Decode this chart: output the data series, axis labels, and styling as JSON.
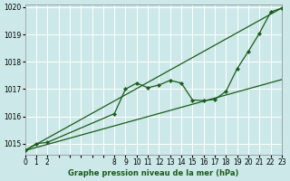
{
  "title": "Graphe pression niveau de la mer (hPa)",
  "bg_color": "#cce8e8",
  "grid_color": "#ffffff",
  "line_color": "#1a5c1a",
  "xlim": [
    0,
    23
  ],
  "ylim": [
    1014.6,
    1020.1
  ],
  "xticks": [
    0,
    1,
    2,
    3,
    4,
    5,
    6,
    7,
    8,
    9,
    10,
    11,
    12,
    13,
    14,
    15,
    16,
    17,
    18,
    19,
    20,
    21,
    22,
    23
  ],
  "xtick_labels": [
    "0",
    "1",
    "2",
    "",
    "",
    "",
    "",
    "",
    "8",
    "9",
    "10",
    "11",
    "12",
    "13",
    "14",
    "15",
    "16",
    "17",
    "18",
    "19",
    "20",
    "21",
    "22",
    "23"
  ],
  "yticks": [
    1015,
    1016,
    1017,
    1018,
    1019,
    1020
  ],
  "line1_x": [
    0,
    1,
    2,
    8,
    9,
    10,
    11,
    12,
    13,
    14,
    15,
    16,
    17,
    18,
    19,
    20,
    21,
    22,
    23
  ],
  "line1_y": [
    1014.75,
    1015.0,
    1015.05,
    1016.1,
    1017.0,
    1017.22,
    1017.05,
    1017.15,
    1017.32,
    1017.22,
    1016.6,
    1016.58,
    1016.62,
    1016.92,
    1017.75,
    1018.38,
    1019.05,
    1019.82,
    1019.97
  ],
  "line2_x": [
    0,
    23
  ],
  "line2_y": [
    1014.75,
    1017.35
  ],
  "line3_x": [
    0,
    23
  ],
  "line3_y": [
    1014.75,
    1019.97
  ]
}
